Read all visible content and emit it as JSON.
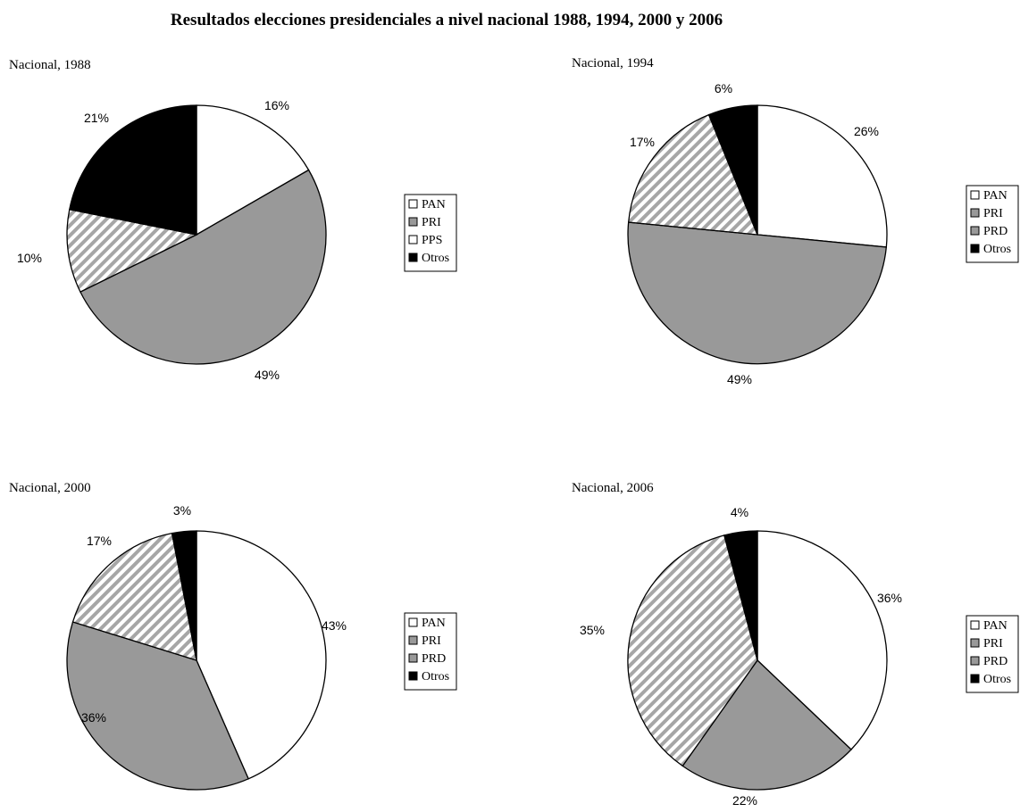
{
  "title": "Resultados elecciones presidenciales a nivel nacional 1988, 1994, 2000 y 2006",
  "fills": {
    "PAN": "#ffffff",
    "PRI": "#999999",
    "PRD": "hatch",
    "PPS": "hatch",
    "Otros": "#000000"
  },
  "legend_swatches": {
    "PAN": "#ffffff",
    "PRI": "#999999",
    "PRD": "#999999",
    "PPS": "#ffffff",
    "Otros": "#000000"
  },
  "chart_data": [
    {
      "type": "pie",
      "title": "Nacional, 1988",
      "categories": [
        "PAN",
        "PRI",
        "PPS",
        "Otros"
      ],
      "values": [
        16,
        49,
        10,
        21
      ],
      "labels": [
        "16%",
        "49%",
        "10%",
        "21%"
      ],
      "legend": [
        "PAN",
        "PRI",
        "PPS",
        "Otros"
      ],
      "legend_position": "right"
    },
    {
      "type": "pie",
      "title": "Nacional, 1994",
      "categories": [
        "PAN",
        "PRI",
        "PRD",
        "Otros"
      ],
      "values": [
        26,
        49,
        17,
        6
      ],
      "labels": [
        "26%",
        "49%",
        "17%",
        "6%"
      ],
      "legend": [
        "PAN",
        "PRI",
        "PRD",
        "Otros"
      ],
      "legend_position": "right"
    },
    {
      "type": "pie",
      "title": "Nacional, 2000",
      "categories": [
        "PAN",
        "PRI",
        "PRD",
        "Otros"
      ],
      "values": [
        43,
        36,
        17,
        3
      ],
      "labels": [
        "43%",
        "36%",
        "17%",
        "3%"
      ],
      "legend": [
        "PAN",
        "PRI",
        "PRD",
        "Otros"
      ],
      "legend_position": "right"
    },
    {
      "type": "pie",
      "title": "Nacional, 2006",
      "categories": [
        "PAN",
        "PRI",
        "PRD",
        "Otros"
      ],
      "values": [
        36,
        22,
        35,
        4
      ],
      "labels": [
        "36%",
        "22%",
        "35%",
        "4%"
      ],
      "legend": [
        "PAN",
        "PRI",
        "PRD",
        "Otros"
      ],
      "legend_position": "right"
    }
  ]
}
